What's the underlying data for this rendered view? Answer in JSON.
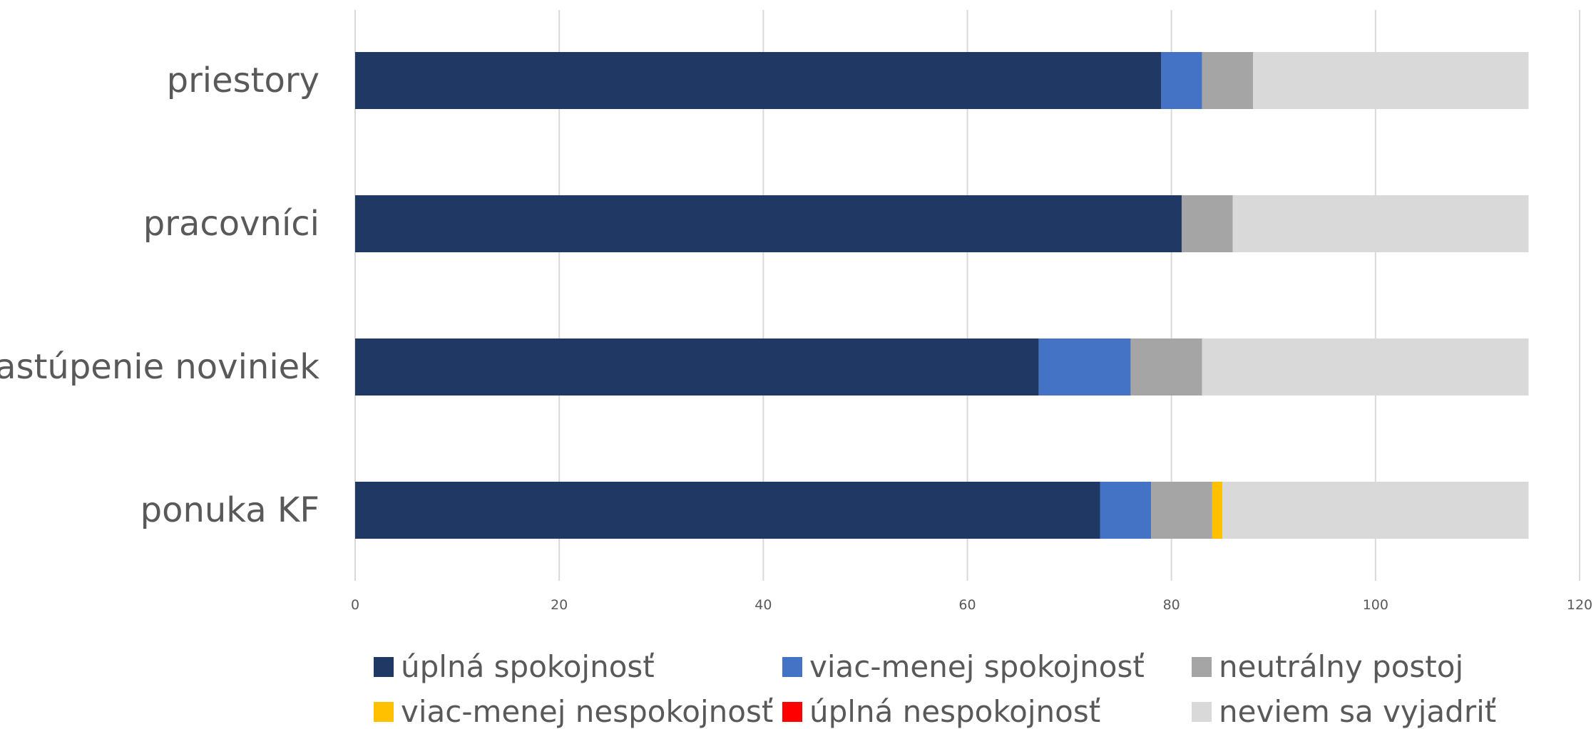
{
  "chart_data": {
    "type": "bar",
    "orientation": "horizontal",
    "stacked": true,
    "categories": [
      "priestory",
      "pracovníci",
      "zastúpenie noviniek",
      "ponuka KF"
    ],
    "series": [
      {
        "name": "úplná spokojnosť",
        "color": "#203864",
        "values": [
          79,
          81,
          67,
          73
        ]
      },
      {
        "name": "viac-menej spokojnosť",
        "color": "#4472c4",
        "values": [
          4,
          0,
          9,
          5
        ]
      },
      {
        "name": "neutrálny postoj",
        "color": "#a5a5a5",
        "values": [
          5,
          5,
          7,
          6
        ]
      },
      {
        "name": "viac-menej nespokojnosť",
        "color": "#ffc000",
        "values": [
          0,
          0,
          0,
          1
        ]
      },
      {
        "name": "úplná nespokojnosť",
        "color": "#ff0000",
        "values": [
          0,
          0,
          0,
          0
        ]
      },
      {
        "name": "neviem sa vyjadriť",
        "color": "#d9d9d9",
        "values": [
          27,
          29,
          32,
          30
        ]
      }
    ],
    "xlim": [
      0,
      120
    ],
    "xticks": [
      "0",
      "20",
      "40",
      "60",
      "80",
      "100",
      "120"
    ],
    "grid": true,
    "legend_position": "bottom"
  }
}
